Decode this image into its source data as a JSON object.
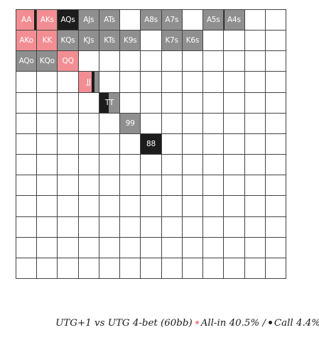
{
  "colors": {
    "allin": "#f28e93",
    "call": "#1c1c1c",
    "fold": "#8f8f8f",
    "grid_line": "#444444"
  },
  "range_grid": {
    "cells": [
      {
        "row": 0,
        "col": 0,
        "label": "AA",
        "allin": 0.9,
        "call": 0.1
      },
      {
        "row": 0,
        "col": 1,
        "label": "AKs",
        "allin": 1.0,
        "call": 0.0
      },
      {
        "row": 0,
        "col": 2,
        "label": "AQs",
        "allin": 0.0,
        "call": 1.0
      },
      {
        "row": 0,
        "col": 3,
        "label": "AJs",
        "allin": 0.0,
        "call": 0.0
      },
      {
        "row": 0,
        "col": 4,
        "label": "ATs",
        "allin": 0.0,
        "call": 0.0
      },
      {
        "row": 0,
        "col": 6,
        "label": "A8s",
        "allin": 0.0,
        "call": 0.0
      },
      {
        "row": 0,
        "col": 7,
        "label": "A7s",
        "allin": 0.0,
        "call": 0.0
      },
      {
        "row": 0,
        "col": 9,
        "label": "A5s",
        "allin": 0.0,
        "call": 0.0
      },
      {
        "row": 0,
        "col": 10,
        "label": "A4s",
        "allin": 0.0,
        "call": 0.04
      },
      {
        "row": 1,
        "col": 0,
        "label": "AKo",
        "allin": 1.0,
        "call": 0.0
      },
      {
        "row": 1,
        "col": 1,
        "label": "KK",
        "allin": 1.0,
        "call": 0.0
      },
      {
        "row": 1,
        "col": 2,
        "label": "KQs",
        "allin": 0.0,
        "call": 0.0
      },
      {
        "row": 1,
        "col": 3,
        "label": "KJs",
        "allin": 0.0,
        "call": 0.0
      },
      {
        "row": 1,
        "col": 4,
        "label": "KTs",
        "allin": 0.0,
        "call": 0.0
      },
      {
        "row": 1,
        "col": 5,
        "label": "K9s",
        "allin": 0.0,
        "call": 0.0
      },
      {
        "row": 1,
        "col": 7,
        "label": "K7s",
        "allin": 0.0,
        "call": 0.0
      },
      {
        "row": 1,
        "col": 8,
        "label": "K6s",
        "allin": 0.0,
        "call": 0.0
      },
      {
        "row": 2,
        "col": 0,
        "label": "AQo",
        "allin": 0.0,
        "call": 0.0
      },
      {
        "row": 2,
        "col": 1,
        "label": "KQo",
        "allin": 0.0,
        "call": 0.0
      },
      {
        "row": 2,
        "col": 2,
        "label": "QQ",
        "allin": 1.0,
        "call": 0.0
      },
      {
        "row": 3,
        "col": 3,
        "label": "JJ",
        "allin": 0.65,
        "call": 0.15
      },
      {
        "row": 4,
        "col": 4,
        "label": "TT",
        "allin": 0.0,
        "call": 0.45
      },
      {
        "row": 5,
        "col": 5,
        "label": "99",
        "allin": 0.0,
        "call": 0.0
      },
      {
        "row": 6,
        "col": 6,
        "label": "88",
        "allin": 0.0,
        "call": 1.0
      }
    ]
  },
  "caption": {
    "prefix": "UTG+1 vs UTG 4-bet (60bb)",
    "allin_text": "All-in 40.5% /",
    "call_text": "Call 4.4%"
  }
}
